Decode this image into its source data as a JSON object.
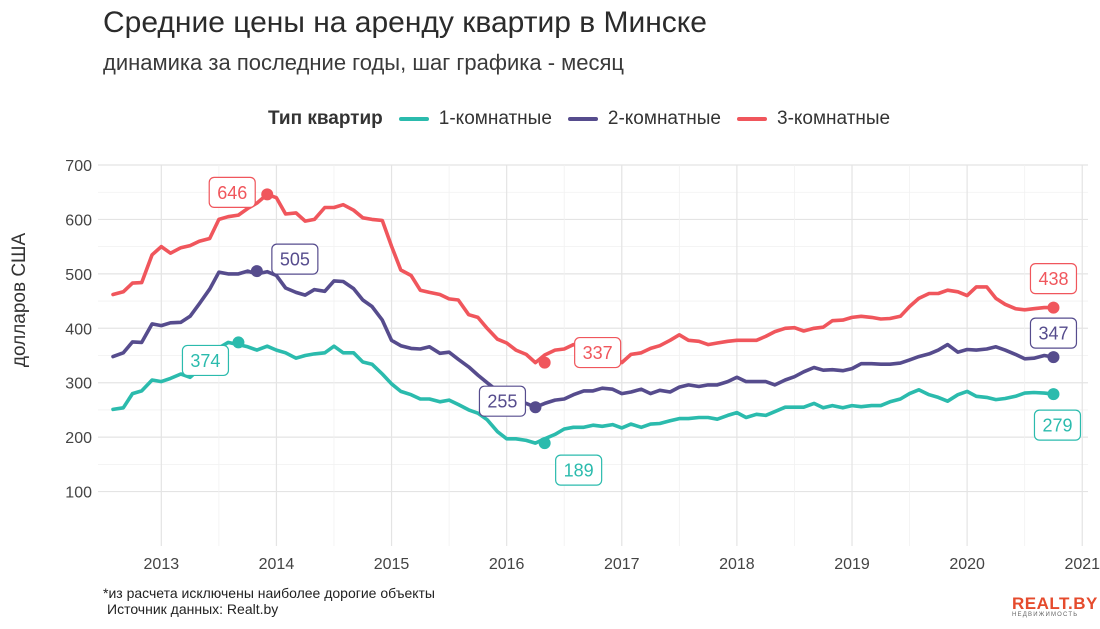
{
  "title": "Средние цены на аренду квартир в Минске",
  "subtitle": "динамика за последние годы, шаг графика - месяц",
  "footnote": "*из расчета исключены наиболее дорогие объекты",
  "source": "Источник данных: Realt.by",
  "logo": {
    "main": "REALT.BY",
    "sub": "НЕДВИЖИМОСТЬ"
  },
  "chart_data": {
    "type": "line",
    "ylabel": "долларов США",
    "xlabel": "",
    "ylim": [
      0,
      700
    ],
    "xlim": [
      2012.45,
      2021.05
    ],
    "yticks": [
      100,
      200,
      300,
      400,
      500,
      600,
      700
    ],
    "xticks": [
      2013,
      2014,
      2015,
      2016,
      2017,
      2018,
      2019,
      2020,
      2021
    ],
    "grid": true,
    "legend": {
      "title": "Тип квартир",
      "position": "top"
    },
    "series": [
      {
        "name": "1-комнатные",
        "color": "#2bbbad",
        "x": [
          2012.58,
          2012.67,
          2012.75,
          2012.83,
          2012.92,
          2013.0,
          2013.08,
          2013.17,
          2013.25,
          2013.33,
          2013.42,
          2013.5,
          2013.58,
          2013.67,
          2013.75,
          2013.83,
          2013.92,
          2014.0,
          2014.08,
          2014.17,
          2014.25,
          2014.33,
          2014.42,
          2014.5,
          2014.58,
          2014.67,
          2014.75,
          2014.83,
          2014.92,
          2015.0,
          2015.08,
          2015.17,
          2015.25,
          2015.33,
          2015.42,
          2015.5,
          2015.58,
          2015.67,
          2015.75,
          2015.83,
          2015.92,
          2016.0,
          2016.08,
          2016.17,
          2016.25,
          2016.33,
          2016.42,
          2016.5,
          2016.58,
          2016.67,
          2016.75,
          2016.83,
          2016.92,
          2017.0,
          2017.08,
          2017.17,
          2017.25,
          2017.33,
          2017.42,
          2017.5,
          2017.58,
          2017.67,
          2017.75,
          2017.83,
          2017.92,
          2018.0,
          2018.08,
          2018.17,
          2018.25,
          2018.33,
          2018.42,
          2018.5,
          2018.58,
          2018.67,
          2018.75,
          2018.83,
          2018.92,
          2019.0,
          2019.08,
          2019.17,
          2019.25,
          2019.33,
          2019.42,
          2019.5,
          2019.58,
          2019.67,
          2019.75,
          2019.83,
          2019.92,
          2020.0,
          2020.08,
          2020.17,
          2020.25,
          2020.33,
          2020.42,
          2020.5,
          2020.58,
          2020.67,
          2020.75
        ],
        "y": [
          251,
          254,
          280,
          285,
          305,
          302,
          308,
          316,
          310,
          325,
          342,
          364,
          374,
          370,
          366,
          360,
          367,
          360,
          355,
          345,
          350,
          353,
          355,
          367,
          355,
          355,
          338,
          334,
          316,
          298,
          284,
          278,
          270,
          270,
          265,
          268,
          260,
          250,
          244,
          232,
          210,
          197,
          197,
          194,
          189,
          197,
          205,
          215,
          218,
          218,
          222,
          220,
          223,
          217,
          224,
          218,
          224,
          225,
          230,
          234,
          234,
          236,
          236,
          233,
          240,
          245,
          236,
          242,
          240,
          247,
          255,
          255,
          255,
          262,
          254,
          258,
          254,
          258,
          256,
          258,
          258,
          265,
          270,
          280,
          287,
          278,
          273,
          266,
          278,
          284,
          275,
          273,
          269,
          271,
          275,
          281,
          282,
          281,
          279
        ],
        "label": "279"
      },
      {
        "name": "2-комнатные",
        "color": "#564c8d",
        "x": [
          2012.58,
          2012.67,
          2012.75,
          2012.83,
          2012.92,
          2013.0,
          2013.08,
          2013.17,
          2013.25,
          2013.33,
          2013.42,
          2013.5,
          2013.58,
          2013.67,
          2013.75,
          2013.83,
          2013.92,
          2014.0,
          2014.08,
          2014.17,
          2014.25,
          2014.33,
          2014.42,
          2014.5,
          2014.58,
          2014.67,
          2014.75,
          2014.83,
          2014.92,
          2015.0,
          2015.08,
          2015.17,
          2015.25,
          2015.33,
          2015.42,
          2015.5,
          2015.58,
          2015.67,
          2015.75,
          2015.83,
          2015.92,
          2016.0,
          2016.08,
          2016.17,
          2016.25,
          2016.33,
          2016.42,
          2016.5,
          2016.58,
          2016.67,
          2016.75,
          2016.83,
          2016.92,
          2017.0,
          2017.08,
          2017.17,
          2017.25,
          2017.33,
          2017.42,
          2017.5,
          2017.58,
          2017.67,
          2017.75,
          2017.83,
          2017.92,
          2018.0,
          2018.08,
          2018.17,
          2018.25,
          2018.33,
          2018.42,
          2018.5,
          2018.58,
          2018.67,
          2018.75,
          2018.83,
          2018.92,
          2019.0,
          2019.08,
          2019.17,
          2019.25,
          2019.33,
          2019.42,
          2019.5,
          2019.58,
          2019.67,
          2019.75,
          2019.83,
          2019.92,
          2020.0,
          2020.08,
          2020.17,
          2020.25,
          2020.33,
          2020.42,
          2020.5,
          2020.58,
          2020.67,
          2020.75
        ],
        "y": [
          348,
          355,
          375,
          374,
          408,
          405,
          410,
          411,
          422,
          445,
          472,
          503,
          500,
          500,
          505,
          500,
          504,
          497,
          474,
          466,
          461,
          471,
          468,
          487,
          486,
          473,
          452,
          440,
          415,
          378,
          368,
          363,
          362,
          366,
          354,
          356,
          343,
          329,
          314,
          300,
          285,
          272,
          266,
          262,
          255,
          262,
          268,
          270,
          278,
          285,
          285,
          290,
          288,
          280,
          283,
          288,
          280,
          286,
          283,
          292,
          296,
          293,
          296,
          296,
          302,
          310,
          302,
          302,
          302,
          296,
          305,
          311,
          320,
          328,
          323,
          324,
          322,
          326,
          335,
          335,
          334,
          334,
          336,
          342,
          348,
          353,
          360,
          370,
          356,
          361,
          360,
          362,
          366,
          360,
          352,
          344,
          345,
          350,
          347
        ],
        "label": "347"
      },
      {
        "name": "3-комнатные",
        "color": "#f0565c",
        "x": [
          2012.58,
          2012.67,
          2012.75,
          2012.83,
          2012.92,
          2013.0,
          2013.08,
          2013.17,
          2013.25,
          2013.33,
          2013.42,
          2013.5,
          2013.58,
          2013.67,
          2013.75,
          2013.83,
          2013.92,
          2014.0,
          2014.08,
          2014.17,
          2014.25,
          2014.33,
          2014.42,
          2014.5,
          2014.58,
          2014.67,
          2014.75,
          2014.83,
          2014.92,
          2015.0,
          2015.08,
          2015.17,
          2015.25,
          2015.33,
          2015.42,
          2015.5,
          2015.58,
          2015.67,
          2015.75,
          2015.83,
          2015.92,
          2016.0,
          2016.08,
          2016.17,
          2016.25,
          2016.33,
          2016.42,
          2016.5,
          2016.58,
          2016.67,
          2016.75,
          2016.83,
          2016.92,
          2017.0,
          2017.08,
          2017.17,
          2017.25,
          2017.33,
          2017.42,
          2017.5,
          2017.58,
          2017.67,
          2017.75,
          2017.83,
          2017.92,
          2018.0,
          2018.08,
          2018.17,
          2018.25,
          2018.33,
          2018.42,
          2018.5,
          2018.58,
          2018.67,
          2018.75,
          2018.83,
          2018.92,
          2019.0,
          2019.08,
          2019.17,
          2019.25,
          2019.33,
          2019.42,
          2019.5,
          2019.58,
          2019.67,
          2019.75,
          2019.83,
          2019.92,
          2020.0,
          2020.08,
          2020.17,
          2020.25,
          2020.33,
          2020.42,
          2020.5,
          2020.58,
          2020.67,
          2020.75
        ],
        "y": [
          462,
          467,
          483,
          484,
          535,
          550,
          538,
          548,
          552,
          560,
          565,
          600,
          605,
          608,
          620,
          630,
          646,
          640,
          610,
          612,
          597,
          600,
          622,
          622,
          627,
          617,
          603,
          600,
          598,
          551,
          507,
          497,
          470,
          466,
          462,
          454,
          452,
          425,
          420,
          400,
          380,
          373,
          360,
          352,
          337,
          351,
          360,
          362,
          370,
          363,
          360,
          355,
          348,
          337,
          352,
          355,
          363,
          368,
          378,
          388,
          378,
          376,
          370,
          373,
          376,
          378,
          378,
          378,
          385,
          394,
          400,
          401,
          395,
          400,
          402,
          414,
          415,
          420,
          422,
          420,
          417,
          418,
          422,
          440,
          455,
          464,
          464,
          470,
          467,
          460,
          476,
          476,
          455,
          444,
          436,
          434,
          436,
          438,
          438
        ],
        "label": "438"
      }
    ],
    "point_labels": [
      {
        "series": "3-комнатные",
        "x": 2013.92,
        "y": 646,
        "label": "646"
      },
      {
        "series": "2-комнатные",
        "x": 2013.83,
        "y": 505,
        "label": "505"
      },
      {
        "series": "1-комнатные",
        "x": 2013.67,
        "y": 374,
        "label": "374"
      },
      {
        "series": "3-комнатные",
        "x": 2016.33,
        "y": 337,
        "label": "337"
      },
      {
        "series": "2-комнатные",
        "x": 2016.25,
        "y": 255,
        "label": "255"
      },
      {
        "series": "1-комнатные",
        "x": 2016.33,
        "y": 189,
        "label": "189"
      },
      {
        "series": "3-комнатные",
        "x": 2020.75,
        "y": 438,
        "label": "438"
      },
      {
        "series": "2-комнатные",
        "x": 2020.75,
        "y": 347,
        "label": "347"
      },
      {
        "series": "1-комнатные",
        "x": 2020.75,
        "y": 279,
        "label": "279"
      }
    ]
  }
}
